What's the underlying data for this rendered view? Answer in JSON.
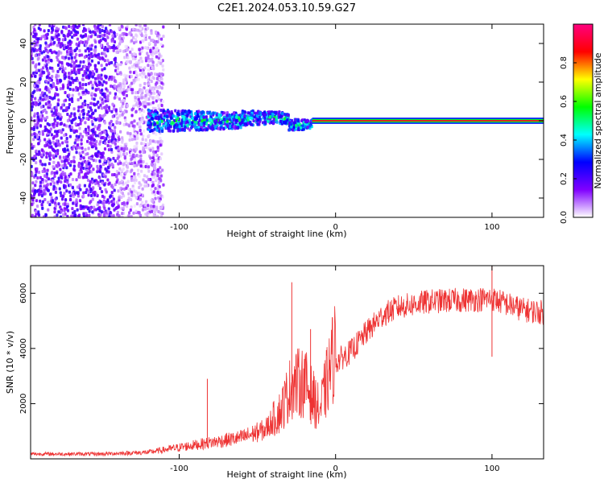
{
  "figure": {
    "title": "C2E1.2024.053.10.59.G27"
  },
  "chart_data": [
    {
      "type": "heatmap",
      "xlabel": "Height of straight line (km)",
      "ylabel": "Frequency (Hz)",
      "xlim": [
        -195,
        133
      ],
      "ylim": [
        -50,
        50
      ],
      "xticks": [
        -100,
        0,
        100
      ],
      "xtick_labels": [
        "-100",
        "0",
        "100"
      ],
      "yticks": [
        -40,
        -20,
        0,
        20,
        40
      ],
      "ytick_labels": [
        "-40",
        "-20",
        "0",
        "20",
        "40"
      ],
      "grid": false,
      "regions": [
        {
          "x": [
            -195,
            -110
          ],
          "freq_spread": 50,
          "amplitude": 0.15,
          "pattern": "broadband noise"
        },
        {
          "x": [
            -120,
            -15
          ],
          "freq_spread": 6,
          "amplitude": 0.3,
          "pattern": "signal spreading"
        },
        {
          "x": [
            -15,
            133
          ],
          "freq_spread": 0,
          "amplitude": 1.0,
          "pattern": "line at 0 Hz"
        }
      ],
      "colorbar": {
        "label": "Normalized spectral amplitude",
        "range": [
          0,
          1
        ],
        "ticks": [
          0.0,
          0.2,
          0.4,
          0.6,
          0.8
        ],
        "tick_labels": [
          "0.0",
          "0.2",
          "0.4",
          "0.6",
          "0.8"
        ],
        "colors": [
          "#ffffff",
          "#8000ff",
          "#0000ff",
          "#00ffff",
          "#00ff00",
          "#ffff00",
          "#ff0000",
          "#ff0080"
        ]
      }
    },
    {
      "type": "line",
      "xlabel": "Height of straight line (km)",
      "ylabel": "SNR (10 * v/v)",
      "xlim": [
        -195,
        133
      ],
      "ylim": [
        0,
        7000
      ],
      "xticks": [
        -100,
        0,
        100
      ],
      "xtick_labels": [
        "-100",
        "0",
        "100"
      ],
      "yticks": [
        2000,
        4000,
        6000
      ],
      "ytick_labels": [
        "2000",
        "4000",
        "6000"
      ],
      "grid": false,
      "color": "#ee3333",
      "envelope": {
        "x": [
          -195,
          -150,
          -120,
          -100,
          -80,
          -60,
          -45,
          -35,
          -28,
          -20,
          -10,
          -5,
          0,
          10,
          20,
          30,
          40,
          50,
          60,
          80,
          100,
          110,
          120,
          133
        ],
        "y": [
          150,
          150,
          200,
          350,
          500,
          650,
          900,
          1500,
          2300,
          2400,
          1500,
          2500,
          3500,
          3900,
          4600,
          5200,
          5500,
          5600,
          5700,
          5750,
          5800,
          5600,
          5400,
          5300
        ]
      },
      "spikes": [
        {
          "x": -82,
          "y": 2900
        },
        {
          "x": -28,
          "y": 6400
        },
        {
          "x": -16,
          "y": 4700
        },
        {
          "x": 100,
          "y": 7000
        },
        {
          "x": 100,
          "y": 3700
        }
      ]
    }
  ]
}
